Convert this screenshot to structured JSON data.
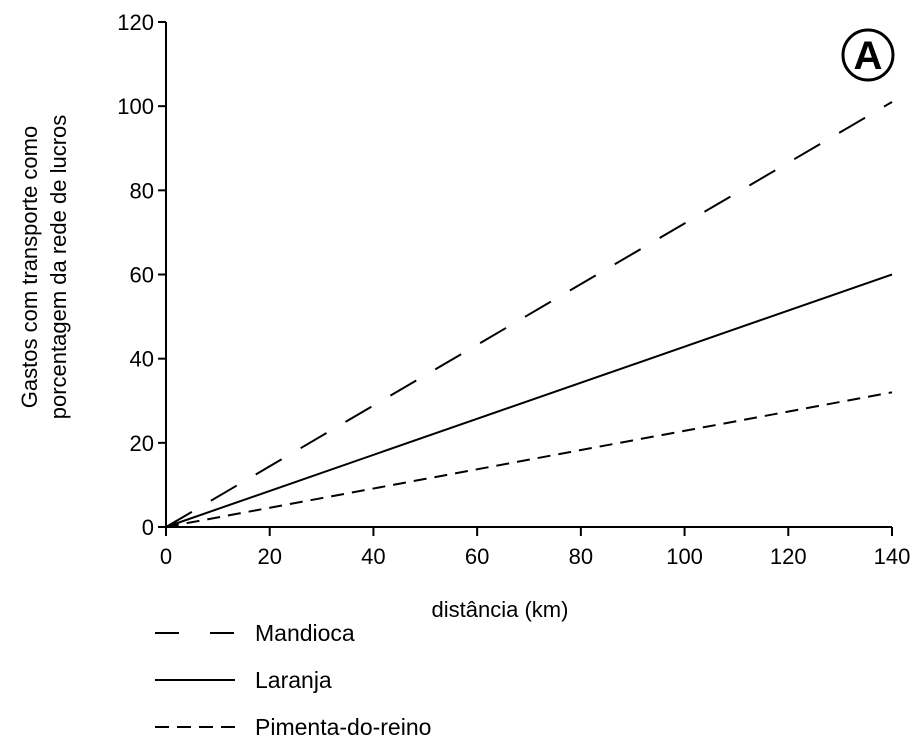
{
  "chart_data": {
    "type": "line",
    "title": "",
    "badge": "A",
    "xlabel": "distância (km)",
    "ylabel_lines": [
      "Gastos com transporte como",
      "porcentagem da rede de lucros"
    ],
    "xlim": [
      0,
      140
    ],
    "ylim": [
      0,
      120
    ],
    "xticks": [
      0,
      20,
      40,
      60,
      80,
      100,
      120,
      140
    ],
    "yticks": [
      0,
      20,
      40,
      60,
      80,
      100,
      120
    ],
    "grid": false,
    "legend_position": "bottom-left",
    "series": [
      {
        "name": "Mandioca",
        "style": "long-dash",
        "x": [
          0,
          140
        ],
        "y": [
          0,
          101
        ]
      },
      {
        "name": "Laranja",
        "style": "solid",
        "x": [
          0,
          140
        ],
        "y": [
          0,
          60
        ]
      },
      {
        "name": "Pimenta-do-reino",
        "style": "short-dash",
        "x": [
          0,
          140
        ],
        "y": [
          0,
          32
        ]
      }
    ]
  }
}
